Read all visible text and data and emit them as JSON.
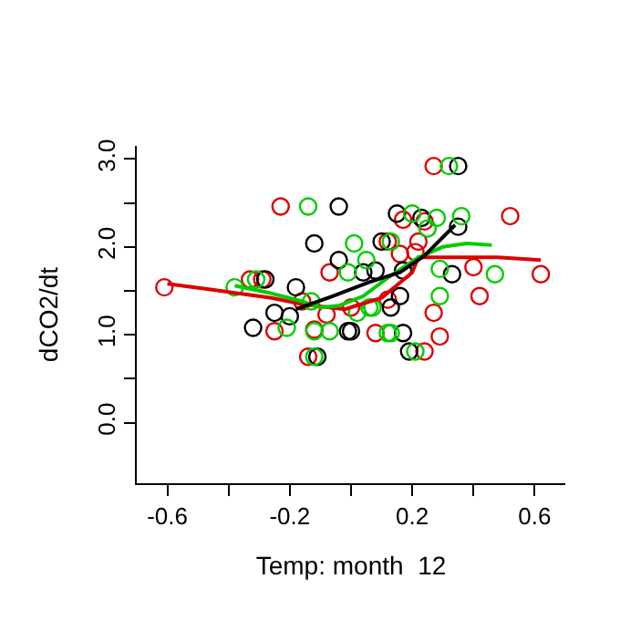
{
  "chart_data": {
    "type": "scatter",
    "xlabel": "Temp: month  12",
    "ylabel": "dCO2/dt",
    "marker": "circle",
    "xlim": [
      -0.7,
      0.7
    ],
    "ylim": [
      -0.69,
      3.15
    ],
    "xticks": [
      -0.6,
      {
        "value": -0.4,
        "label": null
      },
      -0.2,
      {
        "value": 0,
        "label": null
      },
      0.2,
      {
        "value": 0.4,
        "label": null
      },
      0.6
    ],
    "yticks": [
      {
        "value": 0,
        "label": "0.0"
      },
      {
        "value": 0.5,
        "label": null
      },
      {
        "value": 1,
        "label": "1.0"
      },
      {
        "value": 1.5,
        "label": null
      },
      {
        "value": 2,
        "label": "2.0"
      },
      {
        "value": 2.5,
        "label": null
      },
      {
        "value": 3,
        "label": "3.0"
      }
    ],
    "series": [
      {
        "color": "#dd0000",
        "x": [
          -0.61,
          -0.33,
          -0.29,
          -0.23,
          -0.25,
          -0.14,
          -0.16,
          -0.08,
          -0.07,
          -0.12,
          0.0,
          0.08,
          0.12,
          0.12,
          0.16,
          0.17,
          0.21,
          0.22,
          0.24,
          0.24,
          0.27,
          0.27,
          0.29,
          0.4,
          0.42,
          0.52,
          0.62
        ],
        "values": [
          1.54,
          1.63,
          1.63,
          2.46,
          1.04,
          0.75,
          1.38,
          1.23,
          1.71,
          1.06,
          1.31,
          1.02,
          2.06,
          1.4,
          1.92,
          2.31,
          1.94,
          2.06,
          2.29,
          0.81,
          1.25,
          2.92,
          0.98,
          1.77,
          1.44,
          2.35,
          1.69
        ]
      },
      {
        "color": "#000000",
        "x": [
          -0.32,
          -0.28,
          -0.25,
          -0.2,
          -0.18,
          -0.12,
          -0.11,
          -0.04,
          -0.04,
          -0.01,
          0.0,
          0.04,
          0.08,
          0.1,
          0.13,
          0.15,
          0.16,
          0.17,
          0.17,
          0.19,
          0.23,
          0.33,
          0.35,
          0.35
        ],
        "values": [
          1.08,
          1.63,
          1.25,
          1.21,
          1.54,
          2.04,
          0.75,
          1.85,
          2.46,
          1.04,
          1.04,
          1.71,
          1.73,
          2.06,
          1.31,
          2.38,
          1.44,
          1.73,
          1.02,
          0.81,
          2.33,
          1.69,
          2.23,
          2.92
        ]
      },
      {
        "color": "#00cc00",
        "x": [
          -0.38,
          -0.31,
          -0.14,
          -0.21,
          -0.12,
          -0.13,
          -0.12,
          -0.07,
          -0.01,
          0.01,
          0.05,
          0.02,
          0.07,
          0.12,
          0.32,
          0.2,
          0.28,
          0.36,
          0.25,
          0.13,
          0.29,
          0.47,
          0.29,
          0.06,
          0.13,
          0.21
        ],
        "values": [
          1.54,
          1.63,
          2.46,
          1.08,
          0.75,
          1.38,
          1.04,
          1.04,
          1.71,
          2.04,
          1.85,
          1.25,
          1.31,
          1.02,
          2.92,
          2.38,
          2.33,
          2.35,
          2.21,
          2.06,
          1.75,
          1.69,
          1.44,
          1.31,
          1.02,
          0.81
        ]
      },
      {
        "type": "line",
        "marker": "none",
        "color": "#dd0000",
        "x": [
          -0.6,
          -0.47,
          -0.26,
          -0.16,
          -0.12,
          -0.02,
          0.1,
          0.2,
          0.22,
          0.36,
          0.48,
          0.62
        ],
        "values": [
          1.58,
          1.52,
          1.42,
          1.35,
          1.33,
          1.29,
          1.42,
          1.71,
          1.88,
          1.88,
          1.88,
          1.85
        ]
      },
      {
        "type": "line",
        "marker": "none",
        "color": "#00cc00",
        "x": [
          -0.38,
          -0.27,
          -0.16,
          -0.1,
          -0.04,
          0.04,
          0.12,
          0.22,
          0.3,
          0.38,
          0.46
        ],
        "values": [
          1.56,
          1.48,
          1.38,
          1.31,
          1.33,
          1.44,
          1.65,
          1.88,
          2.0,
          2.04,
          2.02
        ]
      },
      {
        "type": "line",
        "marker": "none",
        "color": "#000000",
        "x": [
          -0.18,
          -0.06,
          0.06,
          0.16,
          0.24,
          0.34
        ],
        "values": [
          1.29,
          1.44,
          1.6,
          1.71,
          1.9,
          2.25
        ]
      }
    ]
  }
}
